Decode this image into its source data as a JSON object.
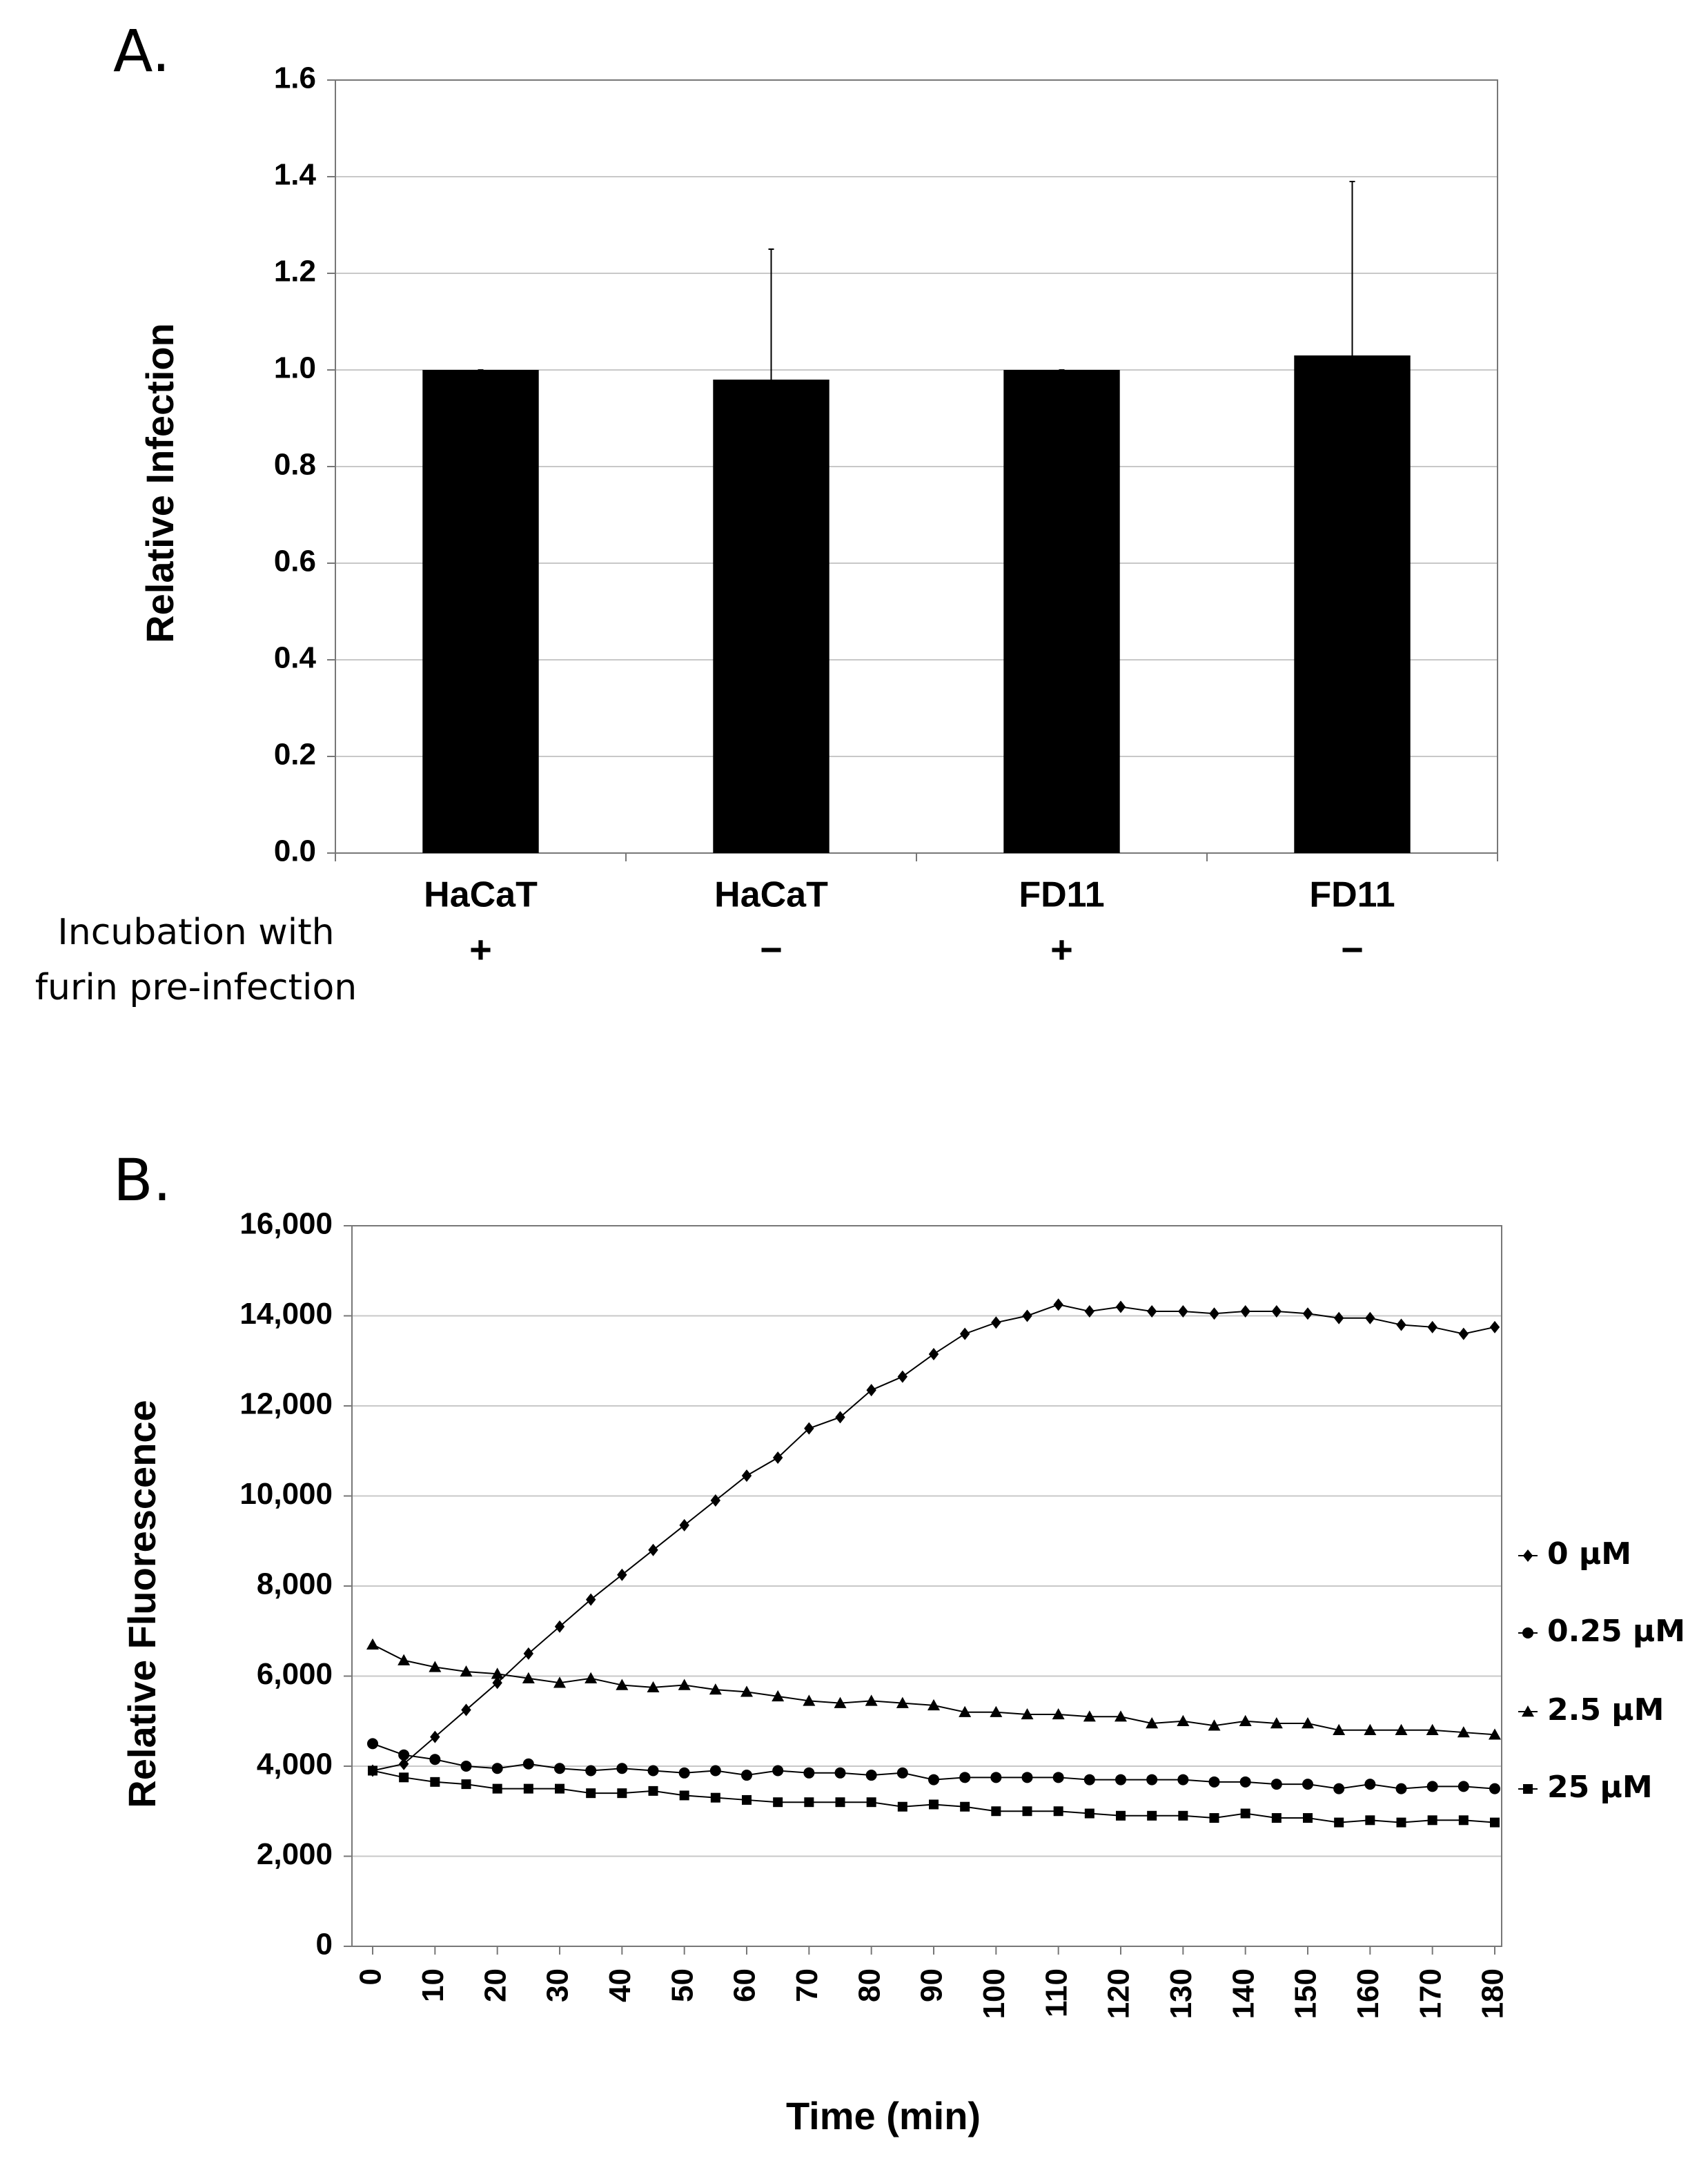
{
  "chart_data": [
    {
      "type": "bar",
      "panel": "A.",
      "y_label": "Relative Infection",
      "categories": [
        "HaCaT",
        "HaCaT",
        "FD11",
        "FD11"
      ],
      "sublabels": [
        "+",
        "−",
        "+",
        "−"
      ],
      "x_label": [
        "Incubation with",
        "furin pre-infection"
      ],
      "values": [
        1.0,
        0.98,
        1.0,
        1.03
      ],
      "errors": [
        0,
        0.27,
        0,
        0.36
      ],
      "color": "#000000",
      "ylim": [
        0,
        1.6
      ],
      "yticks": [
        {
          "value": 0,
          "label": "0.0"
        },
        0.2,
        0.4,
        0.6,
        0.8,
        {
          "value": 1,
          "label": "1.0"
        },
        1.2,
        1.4,
        1.6
      ],
      "grid": true
    },
    {
      "type": "line",
      "panel": "B.",
      "y_label": "Relative Fluorescence",
      "x_label": "Time (min)",
      "x": [
        0,
        5,
        10,
        15,
        20,
        25,
        30,
        35,
        40,
        45,
        50,
        55,
        60,
        65,
        70,
        75,
        80,
        85,
        90,
        95,
        100,
        105,
        110,
        115,
        120,
        125,
        130,
        135,
        140,
        145,
        150,
        155,
        160,
        165,
        170,
        175,
        180
      ],
      "series": [
        {
          "name": "0 μM",
          "color": "#000000",
          "marker": "diamond",
          "values": [
            3900,
            4050,
            4650,
            5250,
            5850,
            6500,
            7100,
            7700,
            8250,
            8800,
            9350,
            9900,
            10450,
            10850,
            11500,
            11750,
            12350,
            12650,
            13150,
            13600,
            13850,
            14000,
            14250,
            14100,
            14200,
            14100,
            14100,
            14050,
            14100,
            14100,
            14050,
            13950,
            13950,
            13800,
            13750,
            13600,
            13750
          ]
        },
        {
          "name": "0.25 μM",
          "color": "#000000",
          "marker": "circle",
          "values": [
            4500,
            4250,
            4150,
            4000,
            3950,
            4050,
            3950,
            3900,
            3950,
            3900,
            3850,
            3900,
            3800,
            3900,
            3850,
            3850,
            3800,
            3850,
            3700,
            3750,
            3750,
            3750,
            3750,
            3700,
            3700,
            3700,
            3700,
            3650,
            3650,
            3600,
            3600,
            3500,
            3600,
            3500,
            3550,
            3550,
            3500
          ]
        },
        {
          "name": "2.5 μM",
          "color": "#000000",
          "marker": "triangle",
          "values": [
            6700,
            6350,
            6200,
            6100,
            6050,
            5950,
            5850,
            5950,
            5800,
            5750,
            5800,
            5700,
            5650,
            5550,
            5450,
            5400,
            5450,
            5400,
            5350,
            5200,
            5200,
            5150,
            5150,
            5100,
            5100,
            4950,
            5000,
            4900,
            5000,
            4950,
            4950,
            4800,
            4800,
            4800,
            4800,
            4750,
            4700
          ]
        },
        {
          "name": "25 μM",
          "color": "#000000",
          "marker": "square",
          "values": [
            3900,
            3750,
            3650,
            3600,
            3500,
            3500,
            3500,
            3400,
            3400,
            3450,
            3350,
            3300,
            3250,
            3200,
            3200,
            3200,
            3200,
            3100,
            3150,
            3100,
            3000,
            3000,
            3000,
            2950,
            2900,
            2900,
            2900,
            2850,
            2950,
            2850,
            2850,
            2750,
            2800,
            2750,
            2800,
            2800,
            2750
          ]
        }
      ],
      "xlim": [
        0,
        180
      ],
      "xticks": [
        0,
        10,
        20,
        30,
        40,
        50,
        60,
        70,
        80,
        90,
        100,
        110,
        120,
        130,
        140,
        150,
        160,
        170,
        180
      ],
      "ylim": [
        0,
        16000
      ],
      "yticks": [
        0,
        {
          "value": 2000,
          "label": "2,000"
        },
        {
          "value": 4000,
          "label": "4,000"
        },
        {
          "value": 6000,
          "label": "6,000"
        },
        {
          "value": 8000,
          "label": "8,000"
        },
        {
          "value": 10000,
          "label": "10,000"
        },
        {
          "value": 12000,
          "label": "12,000"
        },
        {
          "value": 14000,
          "label": "14,000"
        },
        {
          "value": 16000,
          "label": "16,000"
        }
      ],
      "grid": true,
      "legend": "right"
    }
  ]
}
